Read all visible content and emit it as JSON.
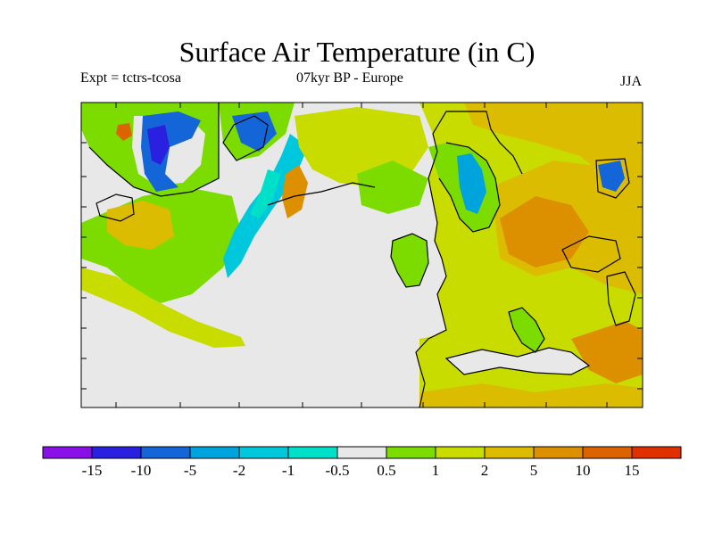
{
  "title": "Surface Air Temperature (in C)",
  "experiment": "Expt = tctrs-tcosa",
  "period": "07kyr BP - Europe",
  "season": "JJA",
  "legend": {
    "colors": [
      "#8a10e8",
      "#2a20e0",
      "#1466d8",
      "#00a4dc",
      "#00c8dc",
      "#00e0c8",
      "#e8e8e8",
      "#7cdc00",
      "#c8dc00",
      "#dcbc00",
      "#dc9000",
      "#dc6400",
      "#e03000"
    ],
    "labels": [
      "-15",
      "-10",
      "-5",
      "-2",
      "-1",
      "-0.5",
      "0.5",
      "1",
      "2",
      "5",
      "10",
      "15"
    ]
  },
  "map_colors": {
    "neutral": "#e8e8e8",
    "light_green": "#7cdc00",
    "yellow_green": "#c8dc00",
    "gold": "#dcbc00",
    "orange": "#dc9000",
    "red_orange": "#dc6400",
    "cyan": "#00c8dc",
    "aqua": "#00e0c8",
    "light_blue": "#00a4dc",
    "blue": "#1466d8",
    "dark_blue": "#2a20e0"
  }
}
